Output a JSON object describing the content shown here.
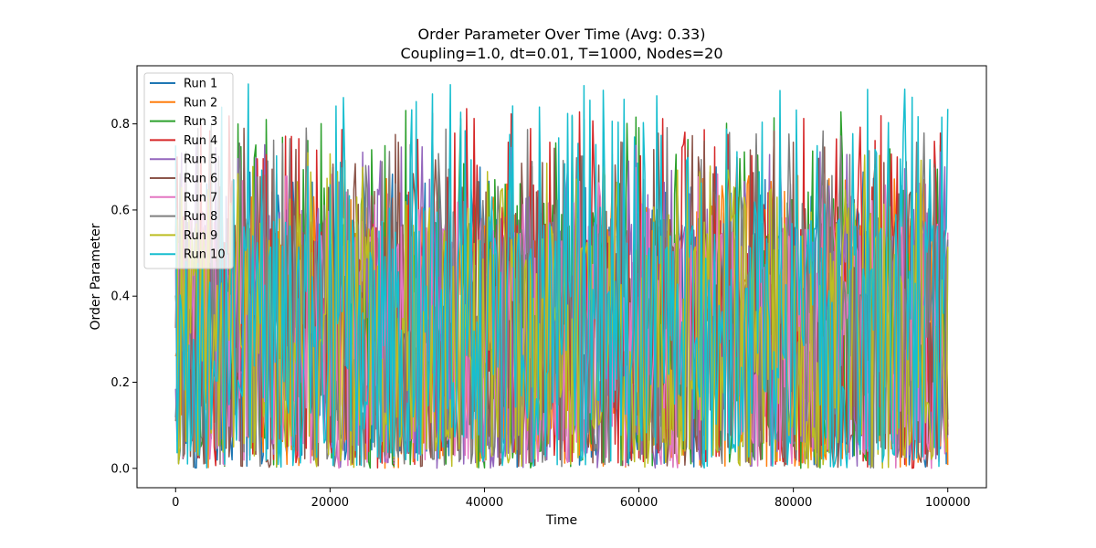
{
  "chart_data": {
    "type": "line",
    "title": "Order Parameter Over Time (Avg: 0.33)",
    "subtitle": "Coupling=1.0, dt=0.01, T=1000, Nodes=20",
    "xlabel": "Time",
    "ylabel": "Order Parameter",
    "xlim": [
      -5000,
      105000
    ],
    "ylim": [
      -0.045,
      0.935
    ],
    "x_ticks": [
      0,
      20000,
      40000,
      60000,
      80000,
      100000
    ],
    "x_tick_labels": [
      "0",
      "20000",
      "40000",
      "60000",
      "80000",
      "100000"
    ],
    "y_ticks": [
      0.0,
      0.2,
      0.4,
      0.6,
      0.8
    ],
    "y_tick_labels": [
      "0.0",
      "0.2",
      "0.4",
      "0.6",
      "0.8"
    ],
    "grid": false,
    "legend_position": "top-left",
    "x_range": [
      0,
      100000
    ],
    "series": [
      {
        "name": "Run 1",
        "color": "#1f77b4",
        "mean": 0.33,
        "min": 0.0,
        "max": 0.7
      },
      {
        "name": "Run 2",
        "color": "#ff7f0e",
        "mean": 0.33,
        "min": 0.0,
        "max": 0.68
      },
      {
        "name": "Run 3",
        "color": "#2ca02c",
        "mean": 0.33,
        "min": 0.0,
        "max": 0.84
      },
      {
        "name": "Run 4",
        "color": "#d62728",
        "mean": 0.33,
        "min": 0.0,
        "max": 0.84
      },
      {
        "name": "Run 5",
        "color": "#9467bd",
        "mean": 0.33,
        "min": 0.0,
        "max": 0.76
      },
      {
        "name": "Run 6",
        "color": "#8c564b",
        "mean": 0.33,
        "min": 0.0,
        "max": 0.79
      },
      {
        "name": "Run 7",
        "color": "#e377c2",
        "mean": 0.33,
        "min": 0.0,
        "max": 0.7
      },
      {
        "name": "Run 8",
        "color": "#7f7f7f",
        "mean": 0.33,
        "min": 0.0,
        "max": 0.8
      },
      {
        "name": "Run 9",
        "color": "#bcbd22",
        "mean": 0.33,
        "min": 0.0,
        "max": 0.74
      },
      {
        "name": "Run 10",
        "color": "#17becf",
        "mean": 0.33,
        "min": 0.0,
        "max": 0.9
      }
    ]
  }
}
